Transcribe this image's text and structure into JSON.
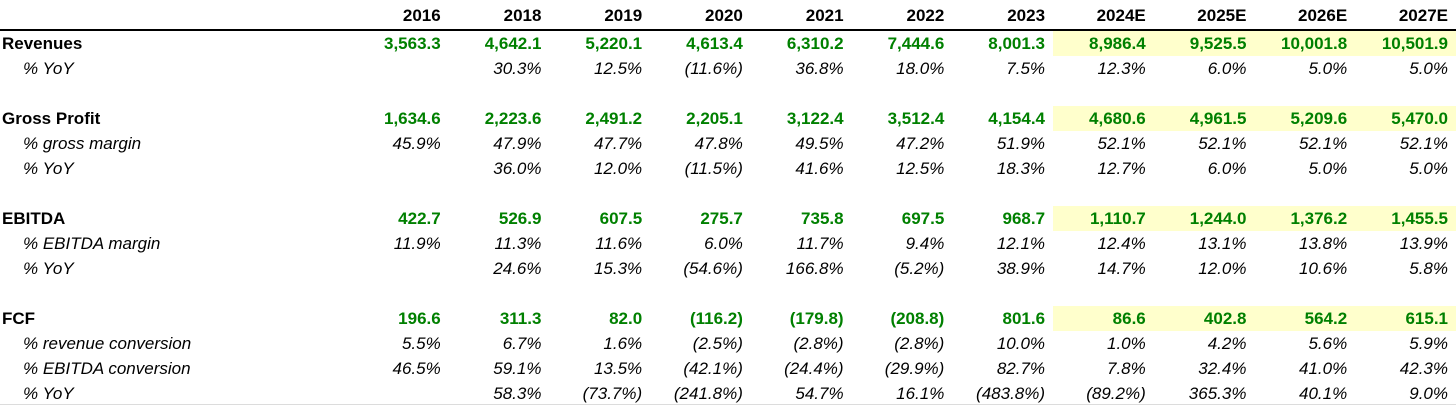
{
  "theme": {
    "metric_value_color": "#008000",
    "estimate_highlight_color": "#FFFFCC",
    "header_rule_color": "#000000",
    "text_color": "#000000"
  },
  "table": {
    "corner_label": "",
    "columns": [
      "2016",
      "2018",
      "2019",
      "2020",
      "2021",
      "2022",
      "2023",
      "2024E",
      "2025E",
      "2026E",
      "2027E"
    ],
    "estimate_start_index": 7,
    "sections": [
      {
        "name": "revenues",
        "metric": {
          "label": "Revenues",
          "values": [
            "3,563.3",
            "4,642.1",
            "5,220.1",
            "4,613.4",
            "6,310.2",
            "7,444.6",
            "8,001.3",
            "8,986.4",
            "9,525.5",
            "10,001.8",
            "10,501.9"
          ]
        },
        "subrows": [
          {
            "label": "% YoY",
            "values": [
              "",
              "30.3%",
              "12.5%",
              "(11.6%)",
              "36.8%",
              "18.0%",
              "7.5%",
              "12.3%",
              "6.0%",
              "5.0%",
              "5.0%"
            ]
          }
        ]
      },
      {
        "name": "gross-profit",
        "metric": {
          "label": "Gross Profit",
          "values": [
            "1,634.6",
            "2,223.6",
            "2,491.2",
            "2,205.1",
            "3,122.4",
            "3,512.4",
            "4,154.4",
            "4,680.6",
            "4,961.5",
            "5,209.6",
            "5,470.0"
          ]
        },
        "subrows": [
          {
            "label": "% gross margin",
            "values": [
              "45.9%",
              "47.9%",
              "47.7%",
              "47.8%",
              "49.5%",
              "47.2%",
              "51.9%",
              "52.1%",
              "52.1%",
              "52.1%",
              "52.1%"
            ]
          },
          {
            "label": "% YoY",
            "values": [
              "",
              "36.0%",
              "12.0%",
              "(11.5%)",
              "41.6%",
              "12.5%",
              "18.3%",
              "12.7%",
              "6.0%",
              "5.0%",
              "5.0%"
            ]
          }
        ]
      },
      {
        "name": "ebitda",
        "metric": {
          "label": "EBITDA",
          "values": [
            "422.7",
            "526.9",
            "607.5",
            "275.7",
            "735.8",
            "697.5",
            "968.7",
            "1,110.7",
            "1,244.0",
            "1,376.2",
            "1,455.5"
          ]
        },
        "subrows": [
          {
            "label": "% EBITDA margin",
            "values": [
              "11.9%",
              "11.3%",
              "11.6%",
              "6.0%",
              "11.7%",
              "9.4%",
              "12.1%",
              "12.4%",
              "13.1%",
              "13.8%",
              "13.9%"
            ]
          },
          {
            "label": "% YoY",
            "values": [
              "",
              "24.6%",
              "15.3%",
              "(54.6%)",
              "166.8%",
              "(5.2%)",
              "38.9%",
              "14.7%",
              "12.0%",
              "10.6%",
              "5.8%"
            ]
          }
        ]
      },
      {
        "name": "fcf",
        "metric": {
          "label": "FCF",
          "values": [
            "196.6",
            "311.3",
            "82.0",
            "(116.2)",
            "(179.8)",
            "(208.8)",
            "801.6",
            "86.6",
            "402.8",
            "564.2",
            "615.1"
          ]
        },
        "subrows": [
          {
            "label": "% revenue conversion",
            "values": [
              "5.5%",
              "6.7%",
              "1.6%",
              "(2.5%)",
              "(2.8%)",
              "(2.8%)",
              "10.0%",
              "1.0%",
              "4.2%",
              "5.6%",
              "5.9%"
            ]
          },
          {
            "label": "% EBITDA conversion",
            "values": [
              "46.5%",
              "59.1%",
              "13.5%",
              "(42.1%)",
              "(24.4%)",
              "(29.9%)",
              "82.7%",
              "7.8%",
              "32.4%",
              "41.0%",
              "42.3%"
            ]
          },
          {
            "label": "% YoY",
            "values": [
              "",
              "58.3%",
              "(73.7%)",
              "(241.8%)",
              "54.7%",
              "16.1%",
              "(483.8%)",
              "(89.2%)",
              "365.3%",
              "40.1%",
              "9.0%"
            ]
          }
        ]
      }
    ]
  }
}
